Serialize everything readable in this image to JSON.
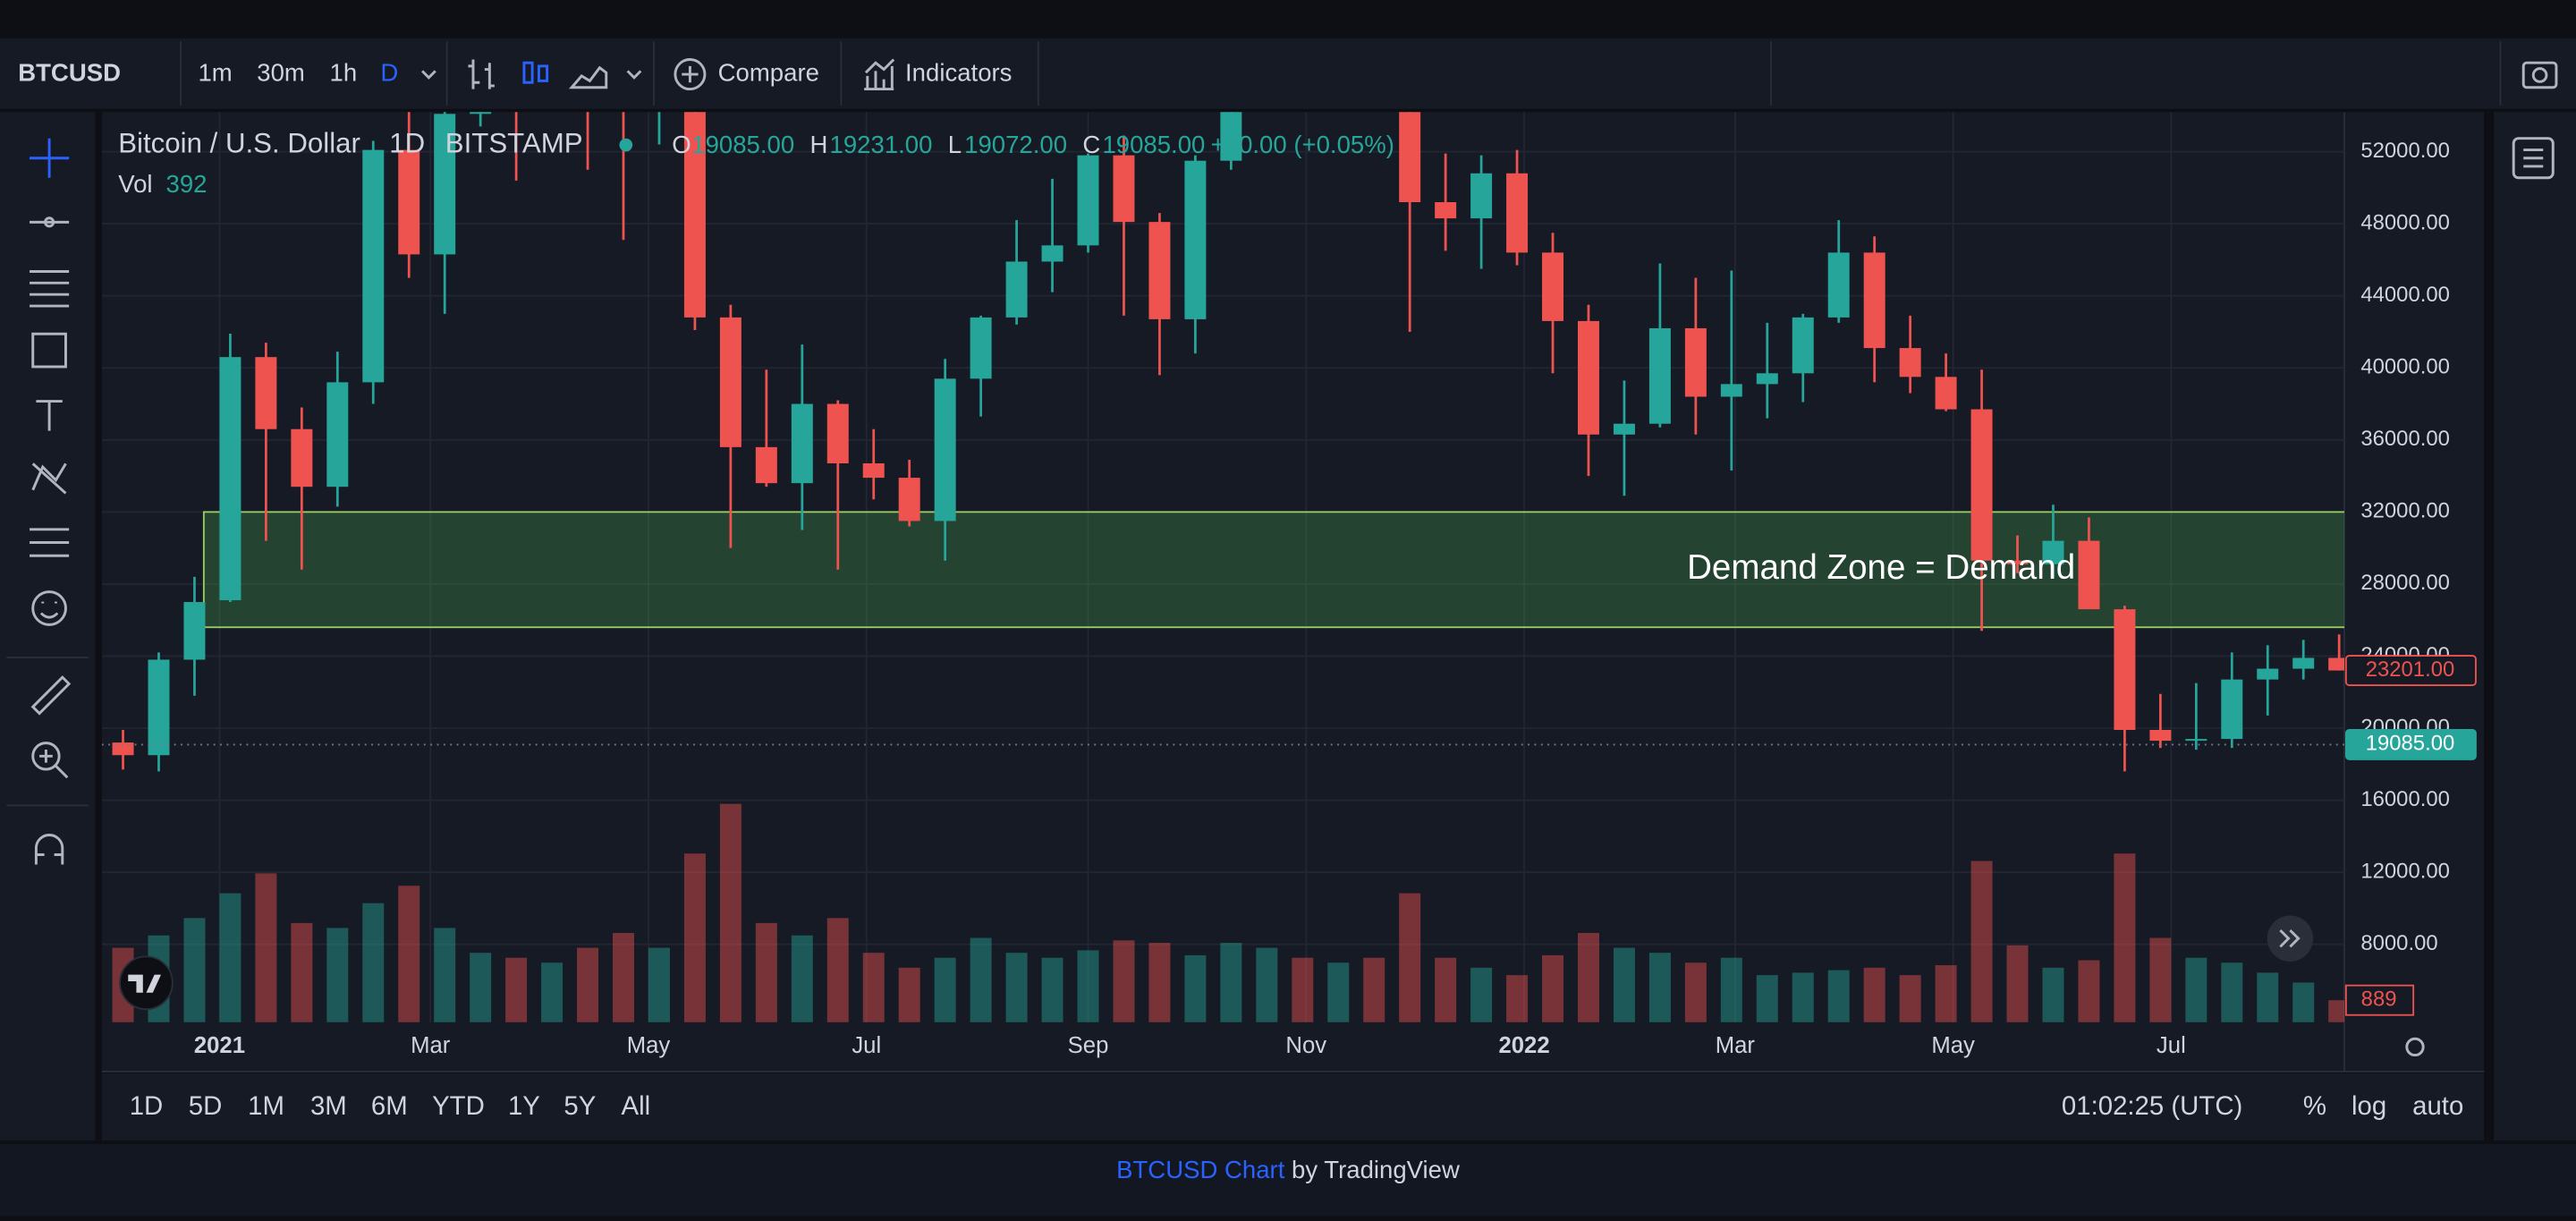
{
  "toolbar": {
    "symbol": "BTCUSD",
    "intervals": [
      "1m",
      "30m",
      "1h",
      "D"
    ],
    "compare": "Compare",
    "indicators": "Indicators"
  },
  "legend": {
    "name": "Bitcoin / U.S. Dollar",
    "interval": "1D",
    "exchange": "BITSTAMP",
    "o_label": "O",
    "o": "19085.00",
    "h_label": "H",
    "h": "19231.00",
    "l_label": "L",
    "l": "19072.00",
    "c_label": "C",
    "c": "19085.00",
    "change": "+10.00 (+0.05%)",
    "vol_label": "Vol",
    "vol": 392
  },
  "chart_data": {
    "type": "candlestick",
    "grid": true,
    "log_scale": false,
    "up_color": "#26a69a",
    "down_color": "#ef5350",
    "open": [
      19200,
      18500,
      23800,
      27100,
      40600,
      36600,
      33400,
      39200,
      52100,
      46300,
      54100,
      58100,
      57700,
      58100,
      56200,
      55000,
      58200,
      42800,
      35600,
      33600,
      38000,
      34700,
      33900,
      31500,
      39400,
      42800,
      45900,
      46800,
      51800,
      48100,
      42700,
      51500,
      61500,
      63100,
      61400,
      65400,
      57100,
      49200,
      48300,
      50800,
      46400,
      42600,
      36300,
      36900,
      42200,
      38400,
      39100,
      39700,
      42800,
      46400,
      41100,
      39500,
      37700,
      29300,
      29100,
      30400,
      26600,
      19900,
      19300,
      19400,
      22700,
      23300,
      23900
    ],
    "high": [
      19900,
      24200,
      28400,
      41900,
      41400,
      37800,
      40900,
      52600,
      58300,
      54900,
      61700,
      59800,
      60200,
      64800,
      57000,
      59500,
      59000,
      43500,
      39900,
      41300,
      38200,
      36600,
      34900,
      40500,
      42900,
      48200,
      50500,
      51900,
      52900,
      48600,
      51800,
      62900,
      67000,
      63500,
      69000,
      66300,
      59200,
      51900,
      51800,
      52100,
      47500,
      43500,
      39300,
      45800,
      45000,
      45400,
      42500,
      43000,
      48200,
      47300,
      42900,
      40800,
      39900,
      30700,
      32400,
      31700,
      26800,
      21900,
      22500,
      24200,
      24600,
      24900,
      25200
    ],
    "low": [
      17700,
      17600,
      21800,
      27000,
      30400,
      28800,
      32300,
      38000,
      45000,
      43000,
      53400,
      50400,
      57000,
      51000,
      47100,
      52400,
      42100,
      30000,
      33400,
      31000,
      28800,
      32700,
      31200,
      29300,
      37300,
      42400,
      44200,
      46400,
      42900,
      39600,
      40800,
      51000,
      59600,
      58000,
      61000,
      55600,
      42000,
      46500,
      45500,
      45700,
      39700,
      34000,
      32900,
      36700,
      36300,
      34300,
      37200,
      38100,
      42500,
      39200,
      38600,
      37600,
      25400,
      28600,
      28300,
      26600,
      17600,
      18900,
      18800,
      18900,
      20700,
      22700,
      23200
    ],
    "close": [
      18500,
      23800,
      27000,
      40600,
      36600,
      33400,
      39200,
      52100,
      46300,
      54100,
      58100,
      57700,
      58100,
      56200,
      55000,
      58200,
      42800,
      35600,
      33600,
      38000,
      34700,
      33900,
      31500,
      39400,
      42800,
      45900,
      46800,
      51800,
      48100,
      42700,
      51500,
      61500,
      63100,
      61400,
      65400,
      57100,
      49200,
      48300,
      50800,
      46400,
      42600,
      36300,
      36900,
      42200,
      38400,
      39100,
      39700,
      42800,
      46400,
      41100,
      39500,
      37700,
      29300,
      29100,
      30400,
      26600,
      19900,
      19300,
      19400,
      22700,
      23300,
      23900,
      23201
    ],
    "volumes": [
      3000,
      3500,
      4200,
      5200,
      6000,
      4000,
      3800,
      4800,
      5500,
      3800,
      2800,
      2600,
      2400,
      3000,
      3600,
      3000,
      6800,
      8800,
      4000,
      3500,
      4200,
      2800,
      2200,
      2600,
      3400,
      2800,
      2600,
      2900,
      3300,
      3200,
      2700,
      3200,
      3000,
      2600,
      2400,
      2600,
      5200,
      2600,
      2200,
      1900,
      2700,
      3600,
      3000,
      2800,
      2400,
      2600,
      1900,
      2000,
      2100,
      2200,
      1900,
      2300,
      6500,
      3100,
      2200,
      2500,
      6800,
      3400,
      2600,
      2400,
      2000,
      1600,
      889
    ],
    "volume_lim": [
      0,
      9400
    ],
    "xlim": [
      0,
      62.6
    ],
    "xticks": [
      {
        "value": 3.2,
        "label": "2021"
      },
      {
        "value": 9.1,
        "label": "Mar"
      },
      {
        "value": 15.2,
        "label": "May"
      },
      {
        "value": 21.3,
        "label": "Jul"
      },
      {
        "value": 27.5,
        "label": "Sep"
      },
      {
        "value": 33.6,
        "label": "Nov"
      },
      {
        "value": 39.7,
        "label": "2022"
      },
      {
        "value": 45.6,
        "label": "Mar"
      },
      {
        "value": 51.7,
        "label": "May"
      },
      {
        "value": 57.8,
        "label": "Jul"
      }
    ],
    "ylim": [
      3670,
      54200
    ],
    "yticks": [
      {
        "value": 8000,
        "label": "8000.00"
      },
      {
        "value": 12000,
        "label": "12000.00"
      },
      {
        "value": 16000,
        "label": "16000.00"
      },
      {
        "value": 20000,
        "label": "20000.00"
      },
      {
        "value": 24000,
        "label": "24000.00"
      },
      {
        "value": 28000,
        "label": "28000.00"
      },
      {
        "value": 32000,
        "label": "32000.00"
      },
      {
        "value": 36000,
        "label": "36000.00"
      },
      {
        "value": 40000,
        "label": "40000.00"
      },
      {
        "value": 44000,
        "label": "44000.00"
      },
      {
        "value": 48000,
        "label": "48000.00"
      },
      {
        "value": 52000,
        "label": "52000.00"
      }
    ],
    "zone": {
      "text": "Demand Zone = Demand",
      "low": 25600,
      "high": 32000,
      "x_start": 2.76
    },
    "price_labels": [
      {
        "value": 23201,
        "label": "23201.00",
        "color": "#ef5350"
      },
      {
        "value": 19085,
        "label": "19085.00",
        "color": "#26a69a"
      }
    ]
  },
  "ranges": [
    "1D",
    "5D",
    "1M",
    "3M",
    "6M",
    "YTD",
    "1Y",
    "5Y",
    "All"
  ],
  "time": "01:02:25 (UTC)",
  "scale_buttons": [
    "%",
    "log",
    "auto"
  ],
  "footer": {
    "link": "BTCUSD Chart",
    "text": "by TradingView"
  }
}
